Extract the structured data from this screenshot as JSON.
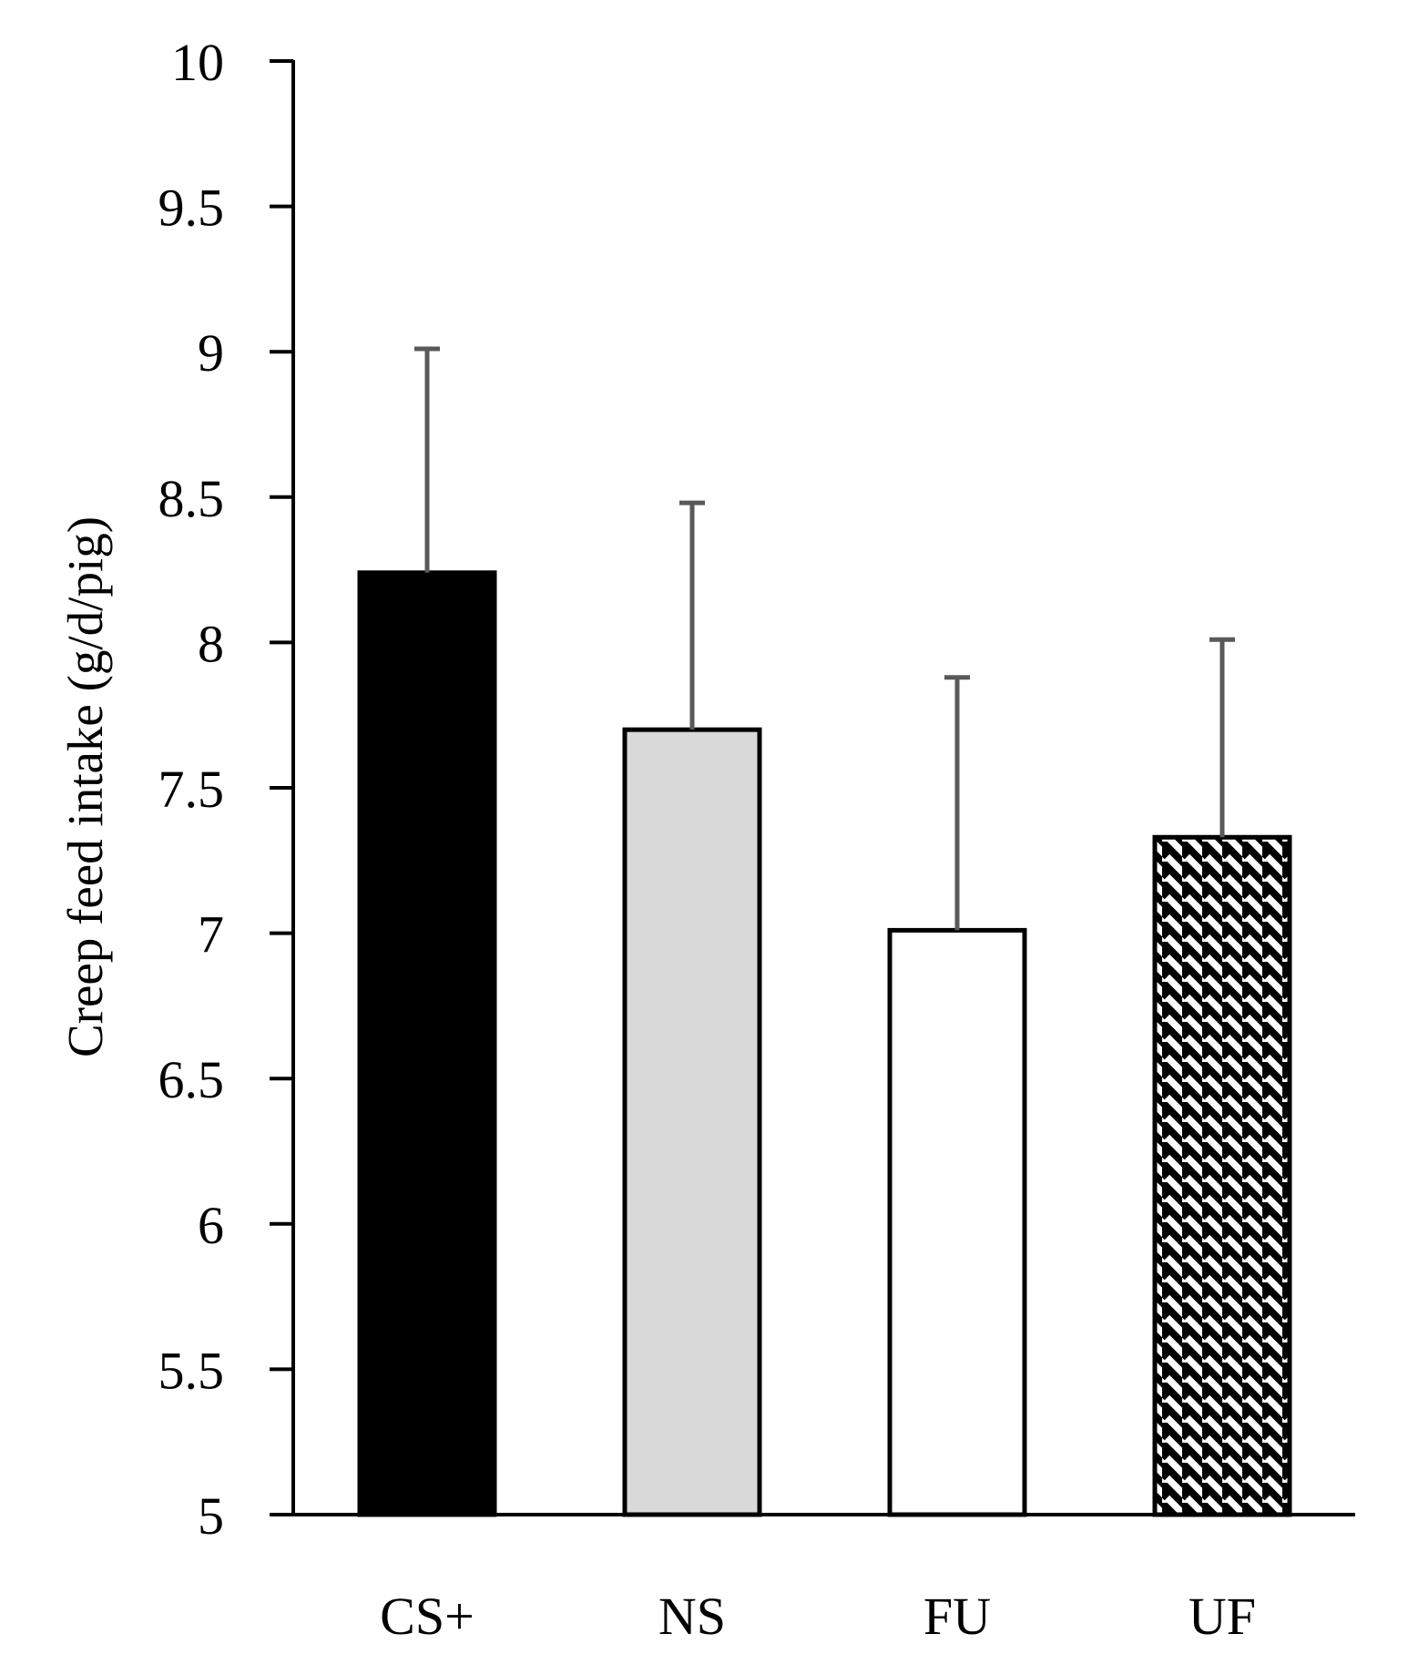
{
  "chart_data": {
    "type": "bar",
    "title": "",
    "xlabel": "",
    "ylabel": "Creep feed intake (g/d/pig)",
    "categories": [
      "CS+",
      "NS",
      "FU",
      "UF"
    ],
    "values": [
      8.24,
      7.7,
      7.01,
      7.33
    ],
    "error_upper": [
      9.01,
      8.48,
      7.88,
      8.01
    ],
    "ylim": [
      5,
      10
    ],
    "yticks": [
      5,
      5.5,
      6,
      6.5,
      7,
      7.5,
      8,
      8.5,
      9,
      9.5,
      10
    ],
    "ytick_labels": [
      "5",
      "5.5",
      "6",
      "6.5",
      "7",
      "7.5",
      "8",
      "8.5",
      "9",
      "9.5",
      "10"
    ],
    "grid": false,
    "bar_styles": [
      {
        "category": "CS+",
        "fill": "#000000",
        "pattern": "solid"
      },
      {
        "category": "NS",
        "fill": "#d9d9d9",
        "pattern": "solid"
      },
      {
        "category": "FU",
        "fill": "#ffffff",
        "pattern": "solid"
      },
      {
        "category": "UF",
        "fill": "#ffffff",
        "pattern": "diagonal-stripes"
      }
    ],
    "colors": {
      "axis": "#000000",
      "bar_outline": "#000000",
      "error_bar": "#595959"
    }
  }
}
